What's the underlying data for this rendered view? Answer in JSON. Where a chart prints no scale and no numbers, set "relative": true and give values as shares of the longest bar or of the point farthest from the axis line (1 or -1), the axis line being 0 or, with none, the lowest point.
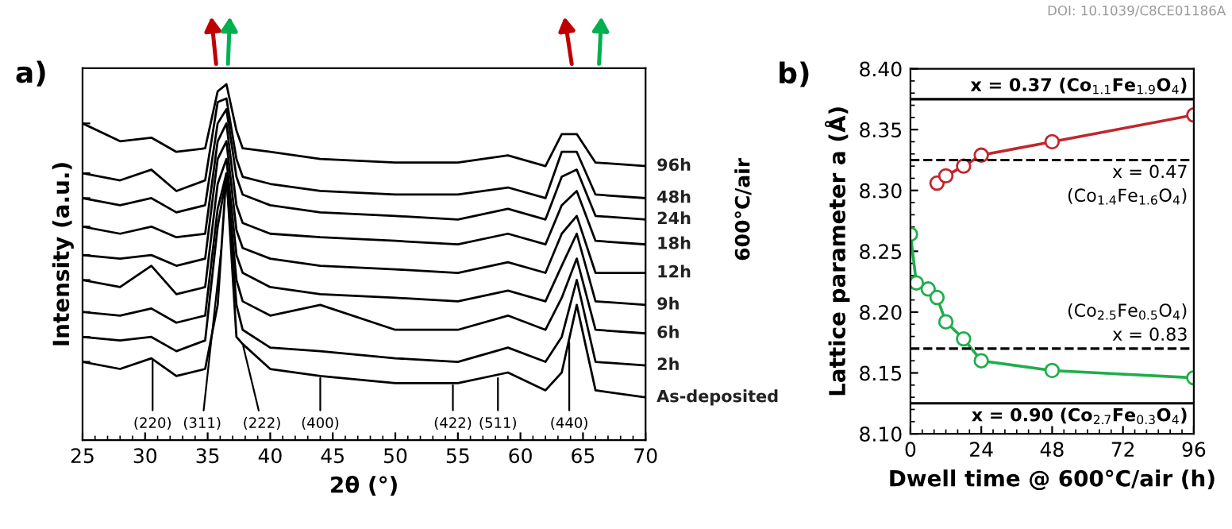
{
  "chart_data": [
    {
      "type": "line",
      "title": "a)",
      "xlabel": "2θ (°)",
      "ylabel": "Intensity (a.u.)",
      "relative": true,
      "tick_labels": "x",
      "legend": false,
      "grid": false,
      "marker": "none",
      "line_style": "solid",
      "xlim": [
        25,
        70
      ],
      "xticks": [
        25,
        30,
        35,
        40,
        45,
        50,
        55,
        60,
        65,
        70
      ],
      "x": [
        25,
        28,
        30.5,
        32.5,
        34.8,
        35.8,
        36.5,
        37.3,
        37.8,
        40,
        44,
        50,
        55,
        59,
        62,
        63.3,
        64.5,
        66,
        70
      ],
      "series": [
        {
          "name": "96h",
          "color": "#000000",
          "values": [
            0.89,
            0.84,
            0.85,
            0.81,
            0.82,
            0.98,
            1.0,
            0.87,
            0.82,
            0.81,
            0.79,
            0.78,
            0.78,
            0.8,
            0.77,
            0.86,
            0.86,
            0.78,
            0.77
          ]
        },
        {
          "name": "48h",
          "color": "#000000",
          "values": [
            0.75,
            0.73,
            0.76,
            0.7,
            0.73,
            0.95,
            0.96,
            0.79,
            0.74,
            0.72,
            0.7,
            0.69,
            0.69,
            0.71,
            0.68,
            0.81,
            0.81,
            0.69,
            0.68
          ]
        },
        {
          "name": "24h",
          "color": "#000000",
          "values": [
            0.68,
            0.66,
            0.68,
            0.64,
            0.66,
            0.89,
            0.93,
            0.74,
            0.69,
            0.66,
            0.64,
            0.63,
            0.62,
            0.65,
            0.62,
            0.74,
            0.76,
            0.63,
            0.62
          ]
        },
        {
          "name": "18h",
          "color": "#000000",
          "values": [
            0.6,
            0.58,
            0.6,
            0.57,
            0.58,
            0.84,
            0.89,
            0.66,
            0.61,
            0.58,
            0.57,
            0.56,
            0.55,
            0.58,
            0.55,
            0.66,
            0.7,
            0.56,
            0.55
          ]
        },
        {
          "name": "12h",
          "color": "#000000",
          "values": [
            0.52,
            0.51,
            0.52,
            0.49,
            0.51,
            0.79,
            0.84,
            0.59,
            0.54,
            0.51,
            0.49,
            0.48,
            0.47,
            0.5,
            0.47,
            0.58,
            0.63,
            0.47,
            0.47
          ]
        },
        {
          "name": "9h",
          "color": "#000000",
          "values": [
            0.45,
            0.43,
            0.49,
            0.41,
            0.43,
            0.72,
            0.79,
            0.52,
            0.47,
            0.43,
            0.41,
            0.4,
            0.39,
            0.42,
            0.39,
            0.49,
            0.58,
            0.39,
            0.38
          ]
        },
        {
          "name": "6h",
          "color": "#000000",
          "values": [
            0.36,
            0.35,
            0.37,
            0.33,
            0.35,
            0.65,
            0.75,
            0.45,
            0.39,
            0.35,
            0.38,
            0.31,
            0.31,
            0.35,
            0.31,
            0.4,
            0.51,
            0.31,
            0.3
          ]
        },
        {
          "name": "2h",
          "color": "#000000",
          "values": [
            0.29,
            0.28,
            0.29,
            0.25,
            0.28,
            0.6,
            0.74,
            0.38,
            0.31,
            0.26,
            0.25,
            0.23,
            0.22,
            0.26,
            0.22,
            0.29,
            0.45,
            0.22,
            0.21
          ]
        },
        {
          "name": "As-deposited",
          "color": "#000000",
          "values": [
            0.22,
            0.2,
            0.23,
            0.18,
            0.2,
            0.38,
            0.75,
            0.29,
            0.27,
            0.2,
            0.18,
            0.16,
            0.16,
            0.19,
            0.14,
            0.19,
            0.38,
            0.14,
            0.12
          ]
        }
      ],
      "annotations": [
        {
          "text": "(220)",
          "x": 30.6,
          "y": 0.23
        },
        {
          "text": "(311)",
          "x": 36.1,
          "y": 0.54
        },
        {
          "text": "(222)",
          "x": 37.8,
          "y": 0.27
        },
        {
          "text": "(400)",
          "x": 44.0,
          "y": 0.18
        },
        {
          "text": "(422)",
          "x": 54.6,
          "y": 0.16
        },
        {
          "text": "(511)",
          "x": 58.2,
          "y": 0.18
        },
        {
          "text": "(440)",
          "x": 63.9,
          "y": 0.28
        },
        "600°C/air"
      ]
    },
    {
      "type": "line",
      "title": "b)",
      "xlabel": "Dwell time @ 600°C/air (h)",
      "ylabel": "Lattice parameter a (Å)",
      "legend": false,
      "grid": false,
      "marker": "circle",
      "line_style": "solid",
      "xlim": [
        0,
        96
      ],
      "xticks": [
        0,
        24,
        48,
        72,
        96
      ],
      "ylim": [
        8.1,
        8.4
      ],
      "yticks": [
        {
          "value": 8.1,
          "label": "8.10"
        },
        {
          "value": 8.15,
          "label": "8.15"
        },
        {
          "value": 8.2,
          "label": "8.20"
        },
        {
          "value": 8.25,
          "label": "8.25"
        },
        {
          "value": 8.3,
          "label": "8.30"
        },
        {
          "value": 8.35,
          "label": "8.35"
        },
        {
          "value": 8.4,
          "label": "8.40"
        }
      ],
      "series": [
        {
          "color": "#c0272d",
          "x": [
            9,
            12,
            18,
            24,
            48,
            96
          ],
          "values": [
            8.306,
            8.312,
            8.32,
            8.329,
            8.34,
            8.362
          ]
        },
        {
          "color": "#1fae4b",
          "x": [
            0,
            2,
            6,
            9,
            12,
            18,
            24,
            48,
            96
          ],
          "values": [
            8.264,
            8.224,
            8.219,
            8.212,
            8.192,
            8.178,
            8.16,
            8.152,
            8.146
          ]
        }
      ],
      "ref_lines": [
        {
          "axis": "y",
          "value": 8.375,
          "color": "#000000",
          "line_style": "solid"
        },
        {
          "axis": "y",
          "value": 8.325,
          "color": "#000000",
          "line_style": "dashed"
        },
        {
          "axis": "y",
          "value": 8.17,
          "color": "#000000",
          "line_style": "dashed"
        },
        {
          "axis": "y",
          "value": 8.125,
          "color": "#000000",
          "line_style": "solid"
        }
      ],
      "annotations": [
        {
          "text": "x = 0.37 (Co$_{1.1}$Fe$_{1.9}$O$_{4}$)",
          "x": 94,
          "y": 8.375
        },
        {
          "text": "x = 0.47\n(Co$_{1.4}$Fe$_{1.6}$O$_{4}$)",
          "x": 94,
          "y": 8.325
        },
        {
          "text": "(Co$_{2.5}$Fe$_{0.5}$O$_{4}$)\nx = 0.83",
          "x": 94,
          "y": 8.17
        },
        {
          "text": "x = 0.90 (Co$_{2.7}$Fe$_{0.3}$O$_{4}$)",
          "x": 94,
          "y": 8.125
        },
        "DOI: 10.1039/C8CE01186A"
      ]
    }
  ]
}
